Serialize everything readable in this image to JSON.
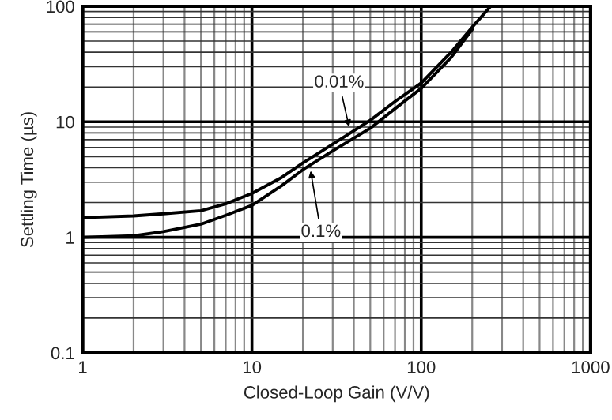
{
  "chart_data": {
    "type": "line",
    "xlabel": "Closed-Loop Gain (V/V)",
    "ylabel": "Settling Time (µs)",
    "log": "xy",
    "grid": true,
    "xlim": [
      1,
      1000
    ],
    "ylim": [
      0.1,
      100
    ],
    "xticks": [
      1,
      10,
      100,
      1000
    ],
    "yticks": [
      0.1,
      1,
      10,
      100
    ],
    "x": [
      1,
      2,
      3,
      5,
      7,
      10,
      15,
      20,
      30,
      50,
      70,
      100,
      150,
      200,
      257
    ],
    "series": [
      {
        "color": "#000000",
        "values": [
          1.48,
          1.53,
          1.6,
          1.7,
          1.95,
          2.4,
          3.3,
          4.4,
          6.4,
          10.3,
          15,
          21.7,
          40,
          66,
          100
        ]
      },
      {
        "color": "#000000",
        "values": [
          1.0,
          1.03,
          1.12,
          1.3,
          1.55,
          1.89,
          2.8,
          3.85,
          5.6,
          8.8,
          13,
          19.5,
          36,
          63,
          null
        ]
      }
    ],
    "annotations": [
      {
        "text": "0.01%",
        "x": 38,
        "y": 8.3
      },
      {
        "text": "0.1%",
        "x": 22,
        "y": 4.1
      }
    ]
  }
}
